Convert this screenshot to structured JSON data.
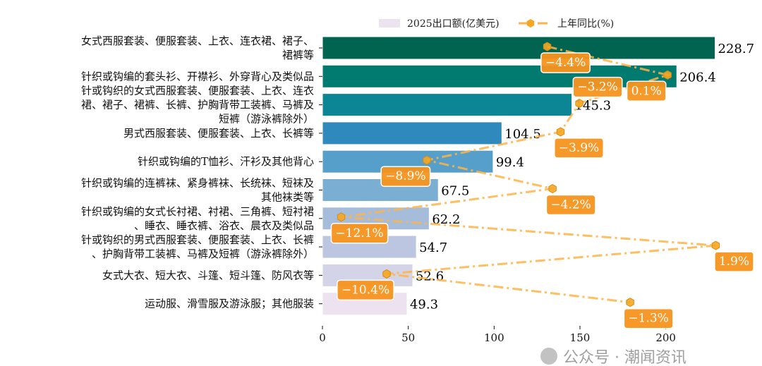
{
  "chart_data": {
    "type": "bar",
    "orientation": "horizontal",
    "categories": [
      [
        "女式西服套装、便服套装、上衣、连衣裙、裙子、",
        "裙裤等"
      ],
      [
        "针织或钩编的套头衫、开襟衫、外穿背心及类似品"
      ],
      [
        "针或钩织的女式西服套装、便服套装、上衣、连衣",
        "裙、裙子、裙裤、长裤、护胸背带工装裤、马裤及",
        "短裤（游泳裤除外）"
      ],
      [
        "男式西服套装、便服套装、上衣、长裤等"
      ],
      [
        "针织或钩编的T恤衫、汗衫及其他背心"
      ],
      [
        "针织或钩编的连裤袜、紧身裤袜、长统袜、短袜及",
        "其他袜类等"
      ],
      [
        "针织或钩编的女式长衬裙、衬裙、三角裤、短衬裙",
        "、睡衣、睡衣裤、浴衣、晨衣及类似品"
      ],
      [
        "针或钩织的男式西服套装、便服套装、上衣、长裤",
        "、护胸背带工装裤、马裤及短裤（游泳裤除外）"
      ],
      [
        "女式大衣、短大衣、斗篷、短斗篷、防风衣等"
      ],
      [
        "运动服、滑雪服及游泳服；其他服装"
      ]
    ],
    "series": [
      {
        "name": "2025出口额(亿美元)",
        "type": "bar",
        "values": [
          228.7,
          206.4,
          145.3,
          104.5,
          99.4,
          67.5,
          62.2,
          54.7,
          52.6,
          49.3
        ],
        "labels": [
          "228.7",
          "206.4",
          "145.3",
          "104.5",
          "99.4",
          "67.5",
          "62.2",
          "54.7",
          "52.6",
          "49.3"
        ],
        "colors": [
          "#016450",
          "#017a70",
          "#0c8595",
          "#3089bd",
          "#559fca",
          "#7aafd3",
          "#a5bddb",
          "#bcc6e0",
          "#d4d4e8",
          "#ece2f0"
        ]
      },
      {
        "name": "上年同比(%)",
        "type": "line",
        "style": "dash-dot",
        "marker": "hexagon",
        "color": "#ffa500",
        "values": [
          -4.4,
          0.1,
          -3.2,
          -3.9,
          -8.9,
          -4.2,
          -12.1,
          1.9,
          -10.4,
          -1.3
        ],
        "labels": [
          "−4.4%",
          "0.1%",
          "−3.2%",
          "−3.9%",
          "−8.9%",
          "−4.2%",
          "−12.1%",
          "1.9%",
          "−10.4%",
          "−1.3%"
        ],
        "xlim": [
          -12.8,
          2.6
        ]
      }
    ],
    "xlim": [
      0,
      240
    ],
    "xticks": [
      "0",
      "50",
      "100",
      "150",
      "200"
    ],
    "xtick_values": [
      0,
      50,
      100,
      150,
      200
    ],
    "legend": {
      "placement": "top-center",
      "items": [
        "2025出口额(亿美元)",
        "上年同比(%)"
      ]
    },
    "grid": false
  },
  "watermark": "公众号 · 潮闻资讯"
}
